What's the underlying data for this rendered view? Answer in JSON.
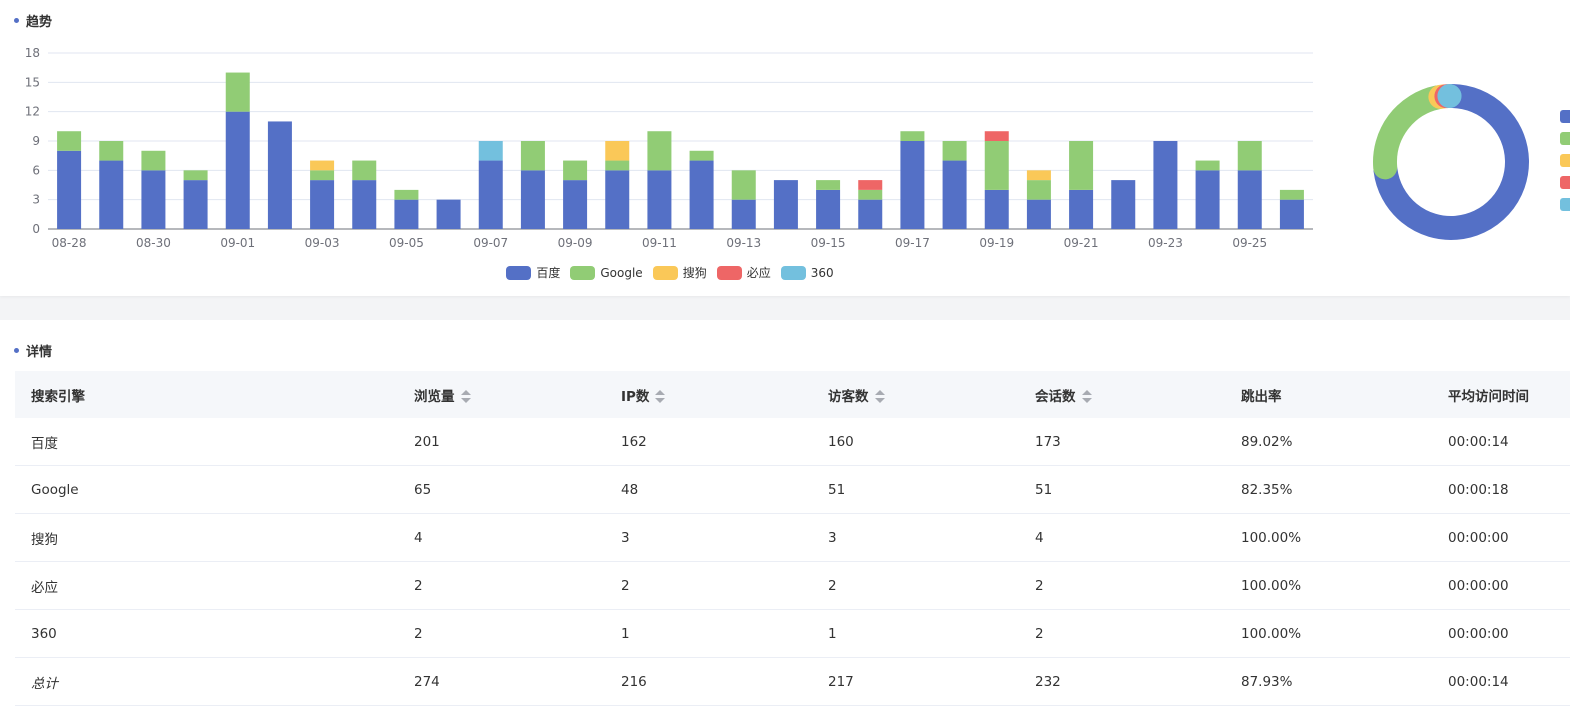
{
  "trend": {
    "title": "趋势"
  },
  "detail": {
    "title": "详情",
    "headers": [
      "搜索引擎",
      "浏览量",
      "IP数",
      "访客数",
      "会话数",
      "跳出率",
      "平均访问时间"
    ],
    "sortable": [
      false,
      true,
      true,
      true,
      true,
      false,
      false
    ],
    "rows": [
      [
        "百度",
        "201",
        "162",
        "160",
        "173",
        "89.02%",
        "00:00:14"
      ],
      [
        "Google",
        "65",
        "48",
        "51",
        "51",
        "82.35%",
        "00:00:18"
      ],
      [
        "搜狗",
        "4",
        "3",
        "3",
        "4",
        "100.00%",
        "00:00:00"
      ],
      [
        "必应",
        "2",
        "2",
        "2",
        "2",
        "100.00%",
        "00:00:00"
      ],
      [
        "360",
        "2",
        "1",
        "1",
        "2",
        "100.00%",
        "00:00:00"
      ],
      [
        "总计",
        "274",
        "216",
        "217",
        "232",
        "87.93%",
        "00:00:14"
      ]
    ]
  },
  "chart_data": [
    {
      "type": "bar",
      "stacked": true,
      "categories": [
        "08-28",
        "08-29",
        "08-30",
        "08-31",
        "09-01",
        "09-02",
        "09-03",
        "09-04",
        "09-05",
        "09-06",
        "09-07",
        "09-08",
        "09-09",
        "09-10",
        "09-11",
        "09-12",
        "09-13",
        "09-14",
        "09-15",
        "09-16",
        "09-17",
        "09-18",
        "09-19",
        "09-20",
        "09-21",
        "09-22",
        "09-23",
        "09-24",
        "09-25",
        "09-26"
      ],
      "xtick_labels": [
        "08-28",
        "08-30",
        "09-01",
        "09-03",
        "09-05",
        "09-07",
        "09-09",
        "09-11",
        "09-13",
        "09-15",
        "09-17",
        "09-19",
        "09-21",
        "09-23",
        "09-25"
      ],
      "ylim": [
        0,
        18
      ],
      "yticks": [
        0,
        3,
        6,
        9,
        12,
        15,
        18
      ],
      "grid": true,
      "legend_position": "bottom",
      "series": [
        {
          "name": "百度",
          "color": "#5470c6",
          "values": [
            8,
            7,
            6,
            5,
            12,
            11,
            5,
            5,
            3,
            3,
            7,
            6,
            5,
            6,
            6,
            7,
            3,
            5,
            4,
            3,
            9,
            7,
            4,
            3,
            4,
            5,
            9,
            6,
            6,
            3
          ]
        },
        {
          "name": "Google",
          "color": "#91cc75",
          "values": [
            2,
            2,
            2,
            1,
            4,
            0,
            1,
            2,
            1,
            0,
            0,
            3,
            2,
            1,
            4,
            1,
            3,
            0,
            1,
            1,
            1,
            2,
            5,
            2,
            5,
            0,
            0,
            1,
            3,
            1
          ]
        },
        {
          "name": "搜狗",
          "color": "#fac858",
          "values": [
            0,
            0,
            0,
            0,
            0,
            0,
            1,
            0,
            0,
            0,
            0,
            0,
            0,
            2,
            0,
            0,
            0,
            0,
            0,
            0,
            0,
            0,
            0,
            1,
            0,
            0,
            0,
            0,
            0,
            0
          ]
        },
        {
          "name": "必应",
          "color": "#ee6666",
          "values": [
            0,
            0,
            0,
            0,
            0,
            0,
            0,
            0,
            0,
            0,
            0,
            0,
            0,
            0,
            0,
            0,
            0,
            0,
            0,
            1,
            0,
            0,
            1,
            0,
            0,
            0,
            0,
            0,
            0,
            0
          ]
        },
        {
          "name": "360",
          "color": "#73c0de",
          "values": [
            0,
            0,
            0,
            0,
            0,
            0,
            0,
            0,
            0,
            0,
            2,
            0,
            0,
            0,
            0,
            0,
            0,
            0,
            0,
            0,
            0,
            0,
            0,
            0,
            0,
            0,
            0,
            0,
            0,
            0
          ]
        }
      ]
    },
    {
      "type": "pie",
      "donut": true,
      "labels": [
        "百度",
        "Google",
        "搜狗",
        "必应",
        "360"
      ],
      "values": [
        201,
        65,
        4,
        2,
        2
      ],
      "colors": [
        "#5470c6",
        "#91cc75",
        "#fac858",
        "#ee6666",
        "#73c0de"
      ]
    }
  ]
}
